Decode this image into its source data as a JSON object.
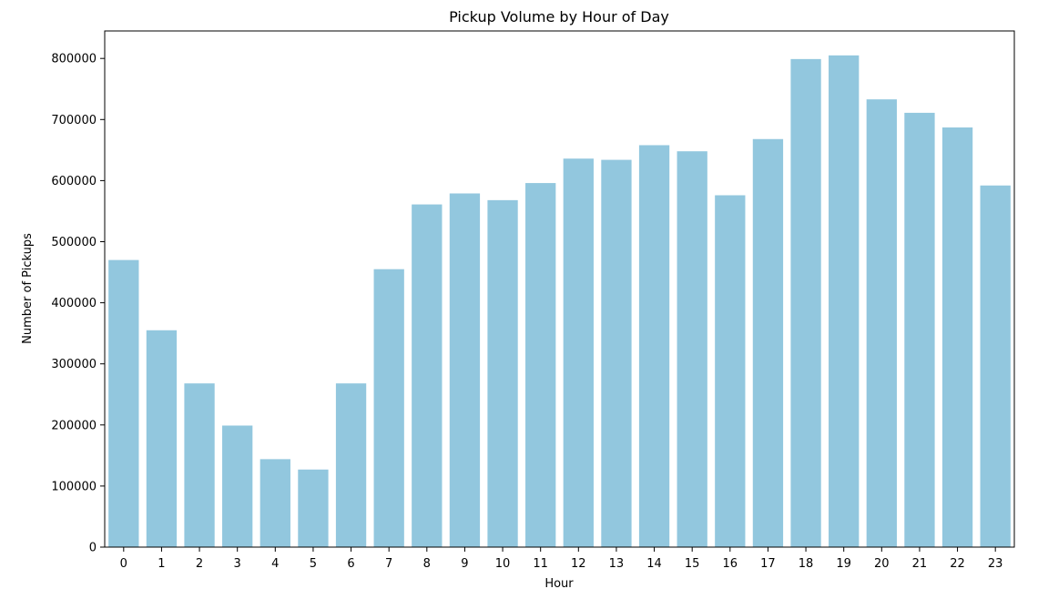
{
  "chart_data": {
    "type": "bar",
    "title": "Pickup Volume by Hour of Day",
    "xlabel": "Hour",
    "ylabel": "Number of Pickups",
    "categories": [
      "0",
      "1",
      "2",
      "3",
      "4",
      "5",
      "6",
      "7",
      "8",
      "9",
      "10",
      "11",
      "12",
      "13",
      "14",
      "15",
      "16",
      "17",
      "18",
      "19",
      "20",
      "21",
      "22",
      "23"
    ],
    "values": [
      470000,
      355000,
      268000,
      199000,
      144000,
      127000,
      268000,
      455000,
      561000,
      579000,
      568000,
      596000,
      636000,
      634000,
      658000,
      648000,
      576000,
      668000,
      799000,
      805000,
      733000,
      711000,
      687000,
      592000
    ],
    "ylim": [
      0,
      845000
    ],
    "yticks": [
      0,
      100000,
      200000,
      300000,
      400000,
      500000,
      600000,
      700000,
      800000
    ],
    "bar_color": "#92c7de",
    "grid": false,
    "legend": "none"
  }
}
